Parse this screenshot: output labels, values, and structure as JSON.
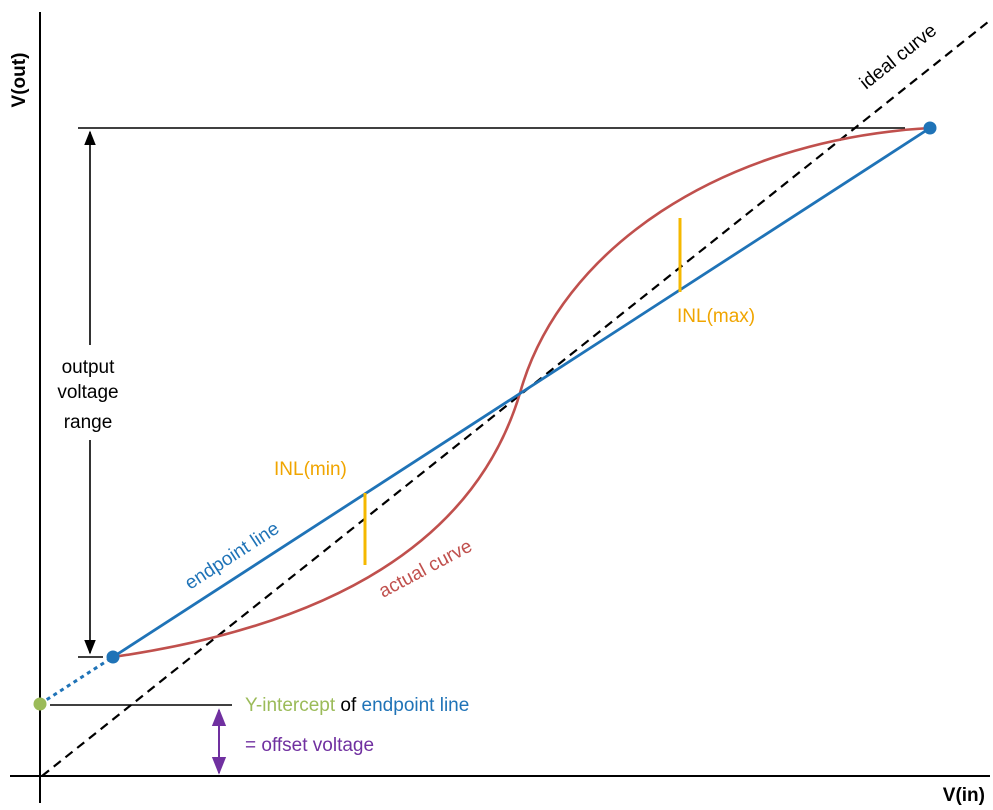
{
  "axes": {
    "x_label": "V(in)",
    "y_label": "V(out)"
  },
  "labels": {
    "ideal_curve": "ideal curve",
    "endpoint_line": "endpoint line",
    "actual_curve": "actual curve",
    "inl_min": "INL(min)",
    "inl_max": "INL(max)",
    "output_range_line1": "output",
    "output_range_line2": "voltage",
    "output_range_line3": "range",
    "y_intercept_part1": "Y-intercept",
    "y_intercept_part2": " of ",
    "y_intercept_part3": "endpoint line",
    "offset_voltage": "= offset voltage"
  },
  "colors": {
    "axis": "#000000",
    "ideal_curve": "#000000",
    "endpoint_line": "#1f73b7",
    "actual_curve": "#c0504d",
    "inl_marker": "#f5b800",
    "inl_text": "#f0a500",
    "y_intercept": "#9bbb59",
    "offset_arrow": "#7030a0"
  }
}
